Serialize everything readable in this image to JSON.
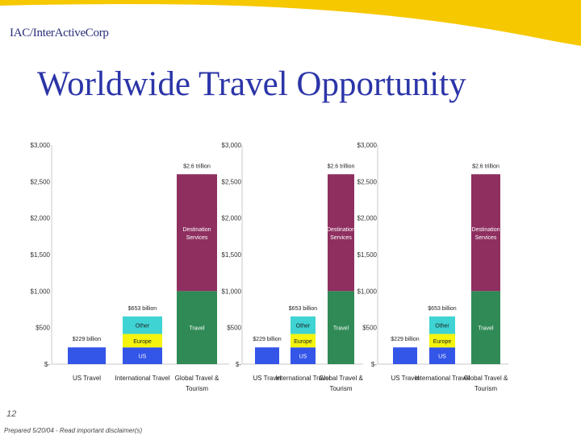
{
  "header": {
    "logo_text": "IAC/InterActiveCorp",
    "title": "Worldwide Travel Opportunity"
  },
  "colors": {
    "us": "#3355e8",
    "europe": "#f4f40e",
    "other": "#3fd3d3",
    "travel": "#2f8a55",
    "destination": "#8e2f60",
    "swoosh": "#f6c800"
  },
  "chart_data": [
    {
      "type": "bar",
      "stacked": true,
      "ylim": [
        0,
        3000
      ],
      "yticks": [
        "$3,000",
        "$2,500",
        "$2,000",
        "$1,500",
        "$1,000",
        "$500",
        "$-"
      ],
      "categories": [
        "US Travel",
        "International Travel",
        "Global Travel & Tourism"
      ],
      "bars": [
        {
          "label": "$229 billion",
          "segments": [
            {
              "name": "",
              "value": 229,
              "color_key": "us"
            }
          ]
        },
        {
          "label": "$653 billion",
          "segments": [
            {
              "name": "US",
              "value": 229,
              "color_key": "us"
            },
            {
              "name": "Europe",
              "value": 184,
              "color_key": "europe"
            },
            {
              "name": "Other",
              "value": 240,
              "color_key": "other"
            }
          ]
        },
        {
          "label": "$2.6 trillion",
          "segments": [
            {
              "name": "Travel",
              "value": 1000,
              "color_key": "travel"
            },
            {
              "name": "Destination Services",
              "value": 1600,
              "color_key": "destination"
            }
          ]
        }
      ]
    },
    {
      "type": "bar",
      "stacked": true,
      "ylim": [
        0,
        3000
      ],
      "yticks": [
        "$3,000",
        "$2,500",
        "$2,000",
        "$1,500",
        "$1,000",
        "$500",
        "$-"
      ],
      "categories": [
        "US Travel",
        "International Travel",
        "Global Travel & Tourism"
      ],
      "bars": [
        {
          "label": "$229 billion",
          "segments": [
            {
              "name": "",
              "value": 229,
              "color_key": "us"
            }
          ]
        },
        {
          "label": "$653 billion",
          "segments": [
            {
              "name": "US",
              "value": 229,
              "color_key": "us"
            },
            {
              "name": "Europe",
              "value": 184,
              "color_key": "europe"
            },
            {
              "name": "Other",
              "value": 240,
              "color_key": "other"
            }
          ]
        },
        {
          "label": "$2.6 trillion",
          "segments": [
            {
              "name": "Travel",
              "value": 1000,
              "color_key": "travel"
            },
            {
              "name": "Destination Services",
              "value": 1600,
              "color_key": "destination"
            }
          ]
        }
      ]
    },
    {
      "type": "bar",
      "stacked": true,
      "ylim": [
        0,
        3000
      ],
      "yticks": [
        "$3,000",
        "$2,500",
        "$2,000",
        "$1,500",
        "$1,000",
        "$500",
        "$-"
      ],
      "categories": [
        "US Travel",
        "International Travel",
        "Global Travel & Tourism"
      ],
      "bars": [
        {
          "label": "$229 billion",
          "segments": [
            {
              "name": "",
              "value": 229,
              "color_key": "us"
            }
          ]
        },
        {
          "label": "$653 billion",
          "segments": [
            {
              "name": "US",
              "value": 229,
              "color_key": "us"
            },
            {
              "name": "Europe",
              "value": 184,
              "color_key": "europe"
            },
            {
              "name": "Other",
              "value": 240,
              "color_key": "other"
            }
          ]
        },
        {
          "label": "$2.6 trillion",
          "segments": [
            {
              "name": "Travel",
              "value": 1000,
              "color_key": "travel"
            },
            {
              "name": "Destination Services",
              "value": 1600,
              "color_key": "destination"
            }
          ]
        }
      ]
    }
  ],
  "footer": {
    "page_number": "12",
    "disclaimer": "Prepared 5/20/04 - Read important disclaimer(s)"
  }
}
